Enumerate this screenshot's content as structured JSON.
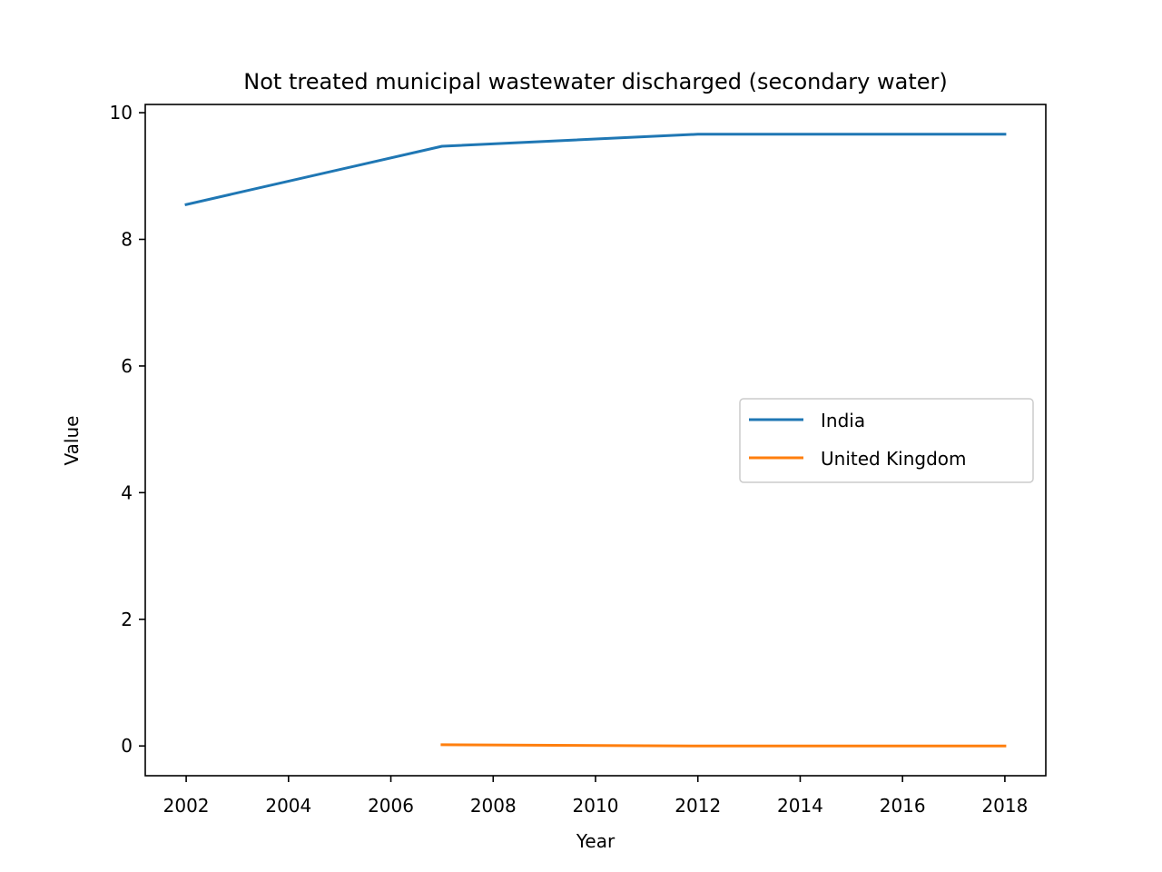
{
  "chart_data": {
    "type": "line",
    "title": "Not treated municipal wastewater discharged (secondary water)",
    "xlabel": "Year",
    "ylabel": "Value",
    "xlim": [
      2001.2,
      2018.8
    ],
    "ylim": [
      -0.47,
      10.13
    ],
    "xticks": [
      2002,
      2004,
      2006,
      2008,
      2010,
      2012,
      2014,
      2016,
      2018
    ],
    "yticks": [
      0,
      2,
      4,
      6,
      8,
      10
    ],
    "grid": false,
    "legend_position": "center-right",
    "series": [
      {
        "name": "India",
        "color": "#1f77b4",
        "x": [
          2002,
          2007,
          2012,
          2018
        ],
        "y": [
          8.55,
          9.47,
          9.66,
          9.66
        ]
      },
      {
        "name": "United Kingdom",
        "color": "#ff7f0e",
        "x": [
          2007,
          2012,
          2018
        ],
        "y": [
          0.02,
          0.0,
          0.0
        ]
      }
    ]
  }
}
